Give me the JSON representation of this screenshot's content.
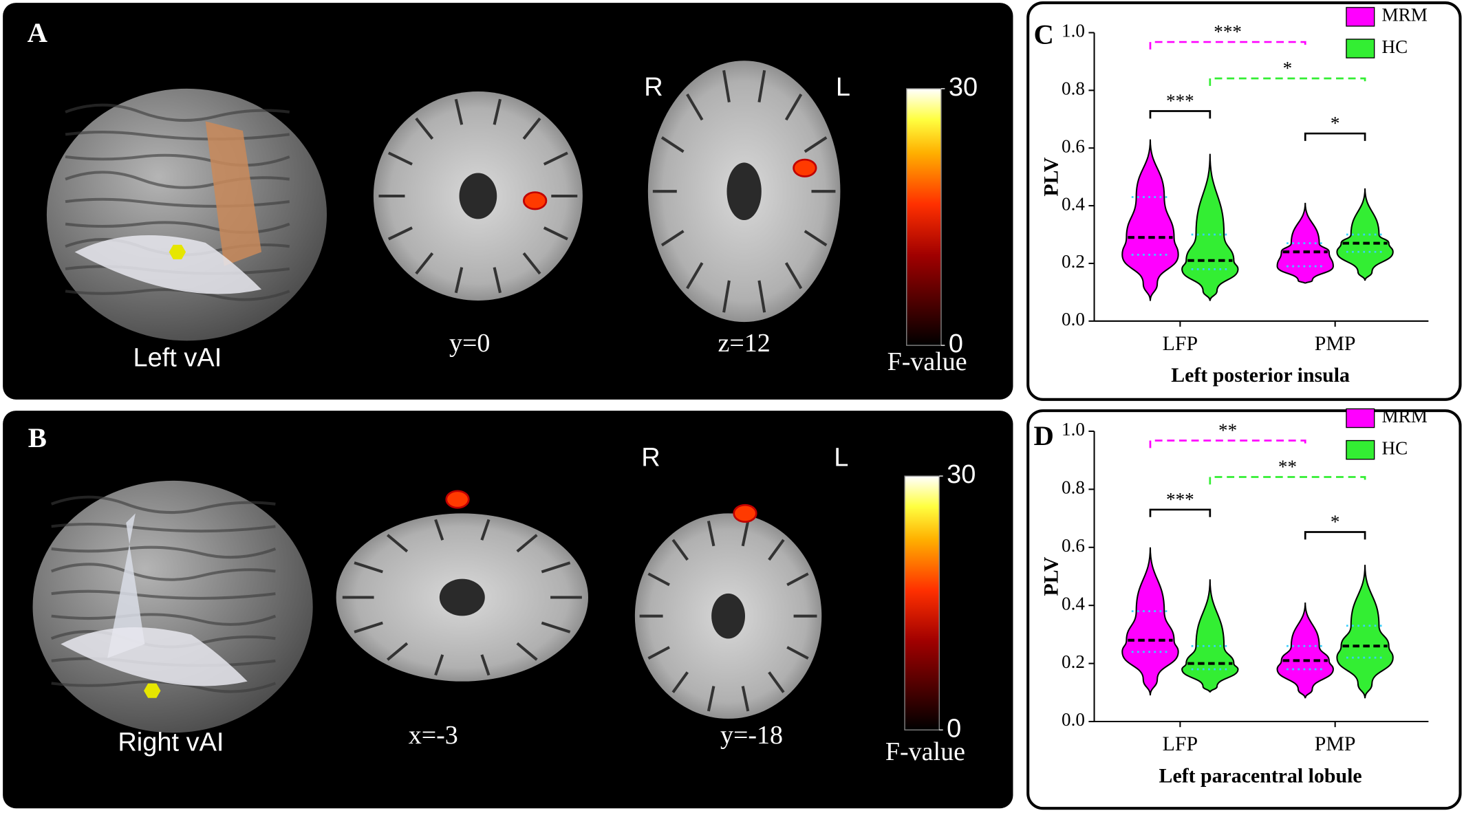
{
  "panels": [
    {
      "letter": "A",
      "captions": [
        "Left vAI",
        "y=0",
        "z=12"
      ],
      "orientation": [
        "R",
        "L"
      ],
      "colorbar": {
        "ticks": [
          0,
          30
        ],
        "label": "F-value"
      }
    },
    {
      "letter": "B",
      "captions": [
        "Right vAI",
        "x=-3",
        "y=-18"
      ],
      "orientation": [
        "R",
        "L"
      ],
      "colorbar": {
        "ticks": [
          0,
          30
        ],
        "label": "F-value"
      }
    }
  ],
  "chart_data": [
    {
      "type": "violin",
      "panel_label": "C",
      "xlabel": "Left posterior insula",
      "ylabel": "PLV",
      "categories": [
        "LFP",
        "PMP"
      ],
      "ylim": [
        0,
        1
      ],
      "yticks": [
        {
          "value": 0,
          "label": "0.0"
        },
        {
          "value": 0.2,
          "label": "0.2"
        },
        {
          "value": 0.4,
          "label": "0.4"
        },
        {
          "value": 0.6,
          "label": "0.6"
        },
        {
          "value": 0.8,
          "label": "0.8"
        },
        {
          "value": 1,
          "label": "1.0"
        }
      ],
      "legend": "top-right",
      "series": [
        {
          "name": "MRM",
          "color": "#ff00ff",
          "min": [
            0.07,
            0.13
          ],
          "q1": [
            0.23,
            0.19
          ],
          "median": [
            0.29,
            0.24
          ],
          "q3": [
            0.43,
            0.27
          ],
          "max": [
            0.63,
            0.41
          ]
        },
        {
          "name": "HC",
          "color": "#33ee33",
          "min": [
            0.07,
            0.14
          ],
          "q1": [
            0.18,
            0.24
          ],
          "median": [
            0.21,
            0.27
          ],
          "q3": [
            0.3,
            0.3
          ],
          "max": [
            0.58,
            0.46
          ]
        }
      ],
      "annotations": [
        "***",
        "*",
        "***",
        "*"
      ]
    },
    {
      "type": "violin",
      "panel_label": "D",
      "xlabel": "Left paracentral lobule",
      "ylabel": "PLV",
      "categories": [
        "LFP",
        "PMP"
      ],
      "ylim": [
        0,
        1
      ],
      "yticks": [
        {
          "value": 0,
          "label": "0.0"
        },
        {
          "value": 0.2,
          "label": "0.2"
        },
        {
          "value": 0.4,
          "label": "0.4"
        },
        {
          "value": 0.6,
          "label": "0.6"
        },
        {
          "value": 0.8,
          "label": "0.8"
        },
        {
          "value": 1,
          "label": "1.0"
        }
      ],
      "legend": "top-right",
      "series": [
        {
          "name": "MRM",
          "color": "#ff00ff",
          "min": [
            0.09,
            0.08
          ],
          "q1": [
            0.24,
            0.18
          ],
          "median": [
            0.28,
            0.21
          ],
          "q3": [
            0.38,
            0.26
          ],
          "max": [
            0.6,
            0.41
          ]
        },
        {
          "name": "HC",
          "color": "#33ee33",
          "min": [
            0.1,
            0.08
          ],
          "q1": [
            0.18,
            0.22
          ],
          "median": [
            0.2,
            0.26
          ],
          "q3": [
            0.26,
            0.33
          ],
          "max": [
            0.49,
            0.54
          ]
        }
      ],
      "annotations": [
        "**",
        "**",
        "***",
        "*"
      ]
    }
  ]
}
